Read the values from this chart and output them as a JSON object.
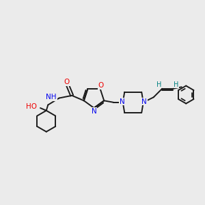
{
  "bg_color": "#ebebeb",
  "bond_color": "#1a1a1a",
  "N_color": "#0000ee",
  "O_color": "#ee0000",
  "H_color": "#008080",
  "bond_width": 1.4,
  "figsize": [
    3.0,
    3.0
  ],
  "dpi": 100,
  "xlim": [
    0,
    12
  ],
  "ylim": [
    1,
    9
  ]
}
